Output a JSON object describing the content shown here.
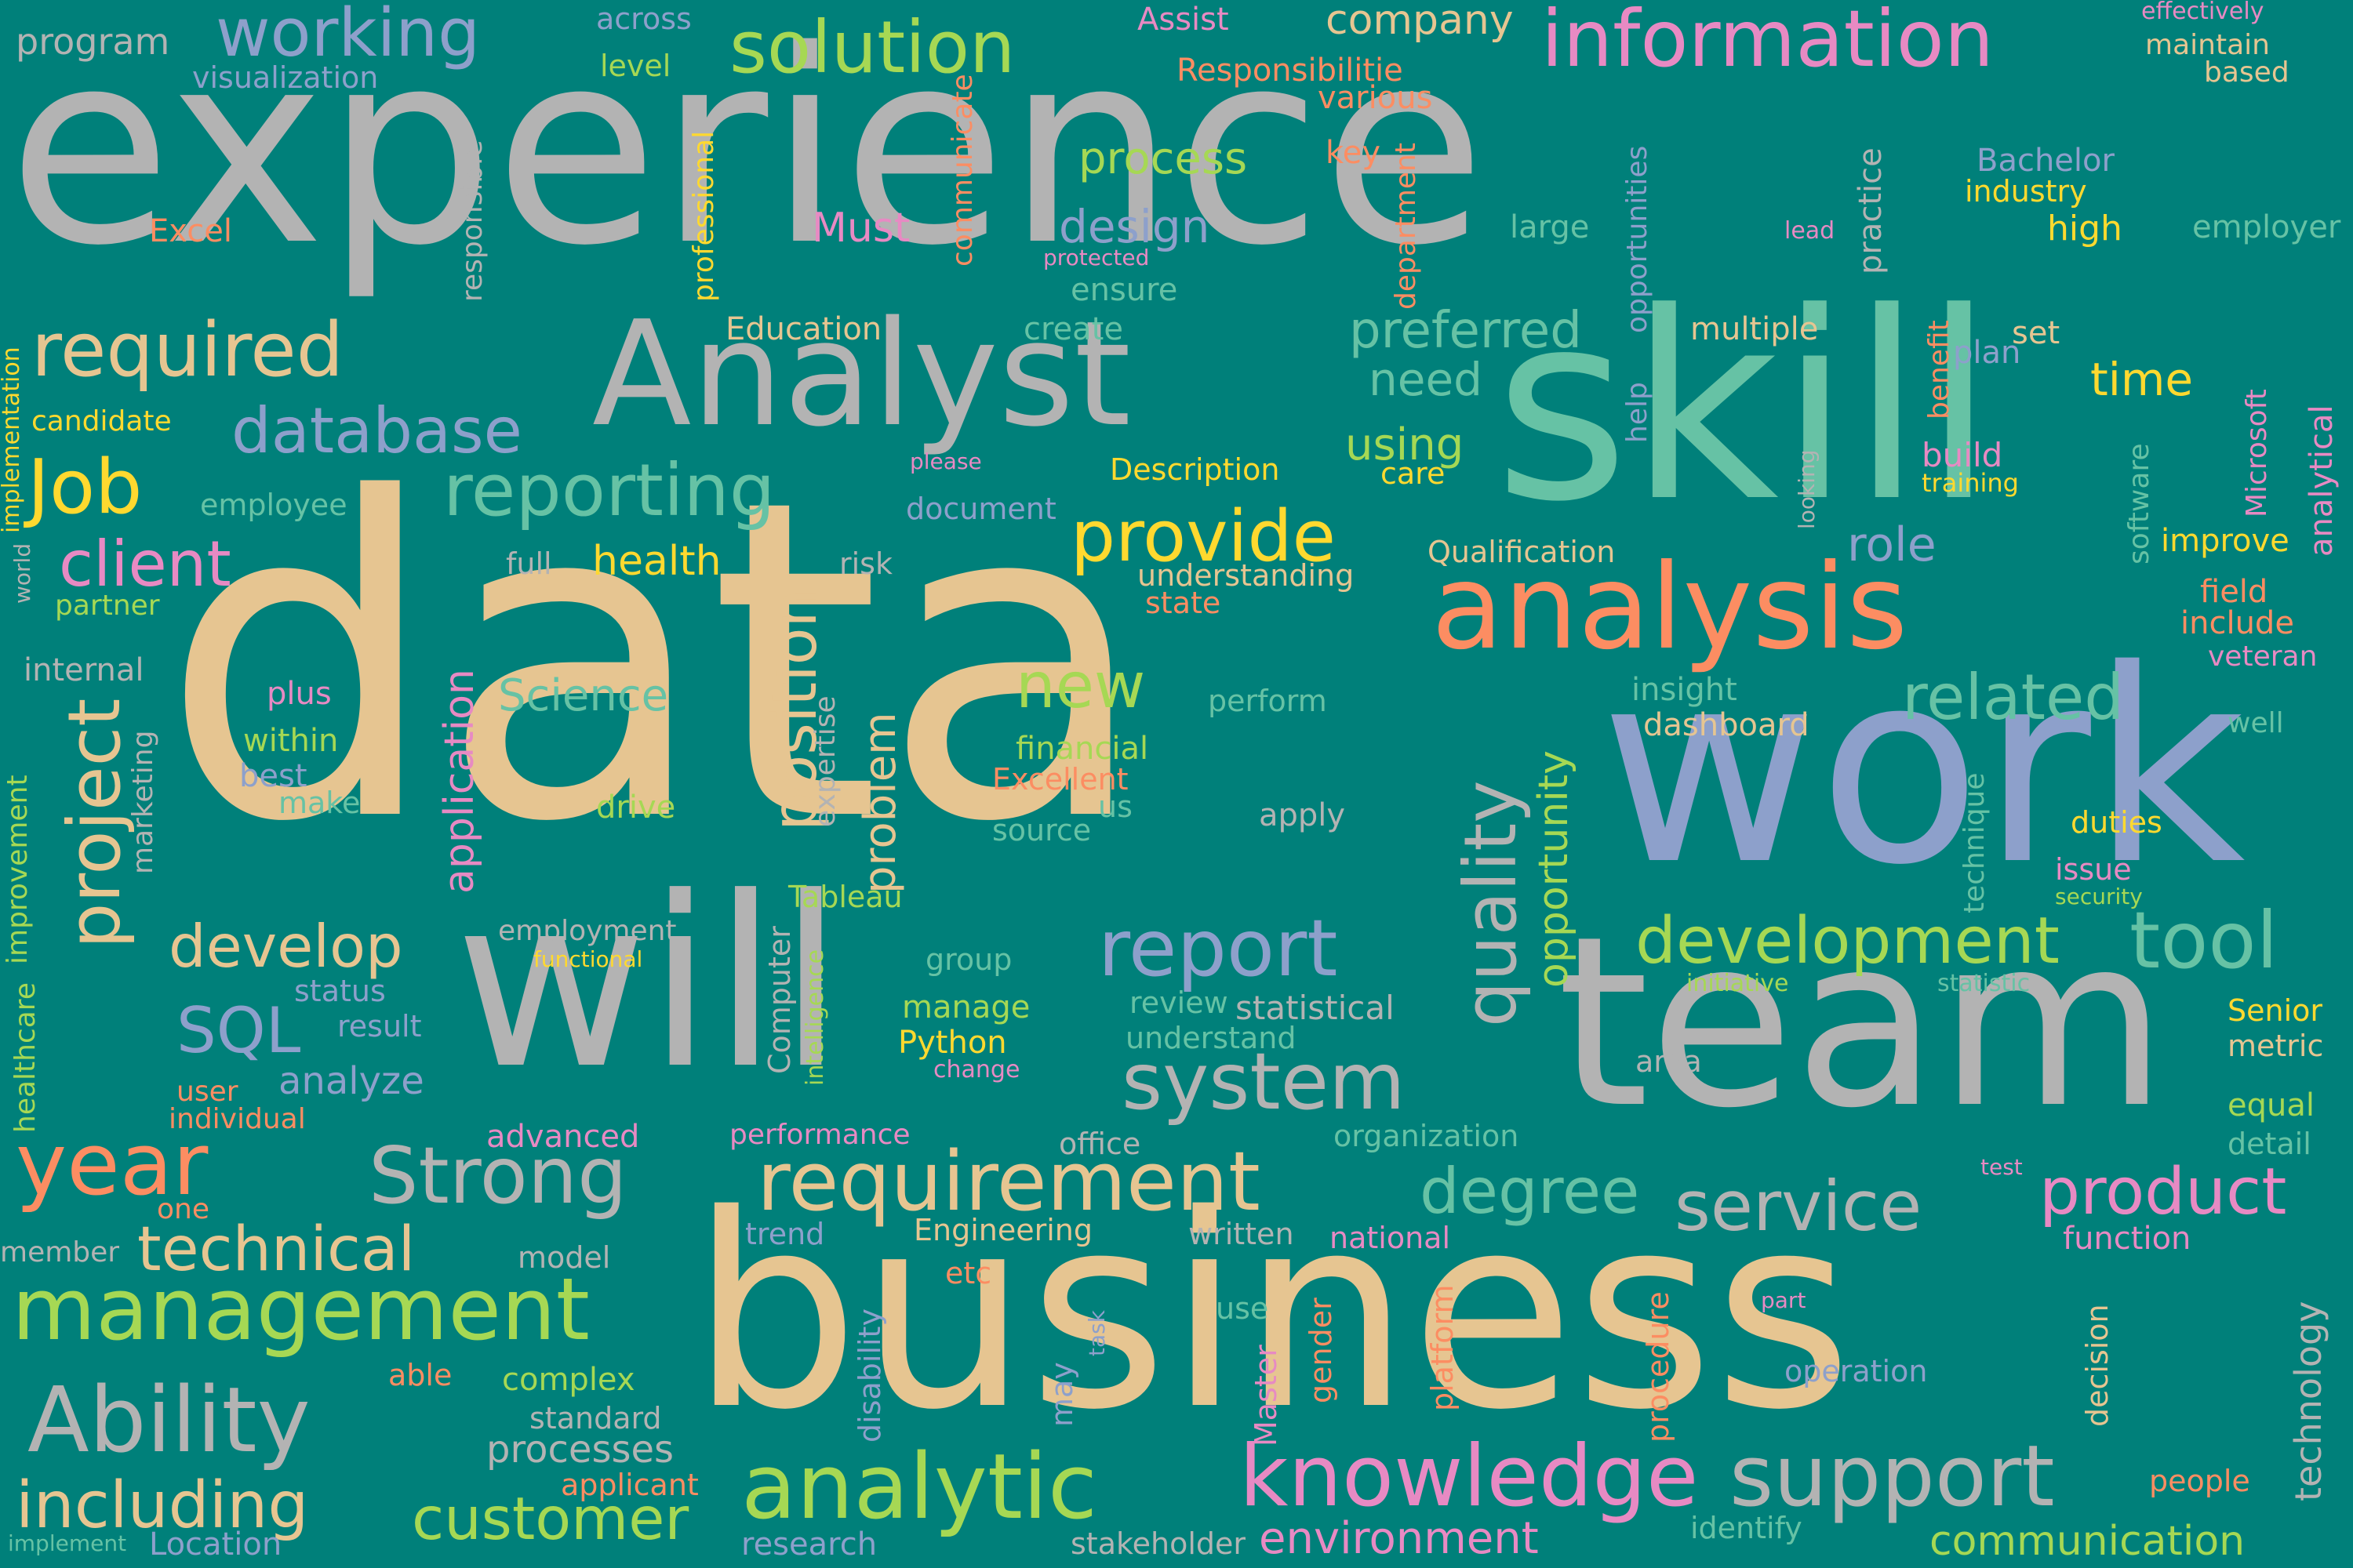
{
  "palette": {
    "background": "#00807a",
    "gray": "#b3b3b3",
    "tan": "#e6c591",
    "teal": "#66c2a5",
    "salmon": "#fc8d62",
    "blue": "#8da0cb",
    "pink": "#e78ac3",
    "lime": "#a6d854",
    "yellow": "#ffd92f"
  },
  "words": [
    {
      "text": "experience",
      "color": "gray"
    },
    {
      "text": "data",
      "color": "tan"
    },
    {
      "text": "skill",
      "color": "teal"
    },
    {
      "text": "work",
      "color": "blue"
    },
    {
      "text": "business",
      "color": "tan"
    },
    {
      "text": "team",
      "color": "gray"
    },
    {
      "text": "will",
      "color": "gray"
    },
    {
      "text": "Analyst",
      "color": "gray"
    },
    {
      "text": "analysis",
      "color": "salmon"
    },
    {
      "text": "information",
      "color": "pink"
    },
    {
      "text": "solution",
      "color": "lime"
    },
    {
      "text": "working",
      "color": "blue"
    },
    {
      "text": "reporting",
      "color": "teal"
    },
    {
      "text": "required",
      "color": "tan"
    },
    {
      "text": "provide",
      "color": "yellow"
    },
    {
      "text": "database",
      "color": "blue"
    },
    {
      "text": "Job",
      "color": "yellow"
    },
    {
      "text": "client",
      "color": "pink"
    },
    {
      "text": "analytic",
      "color": "lime"
    },
    {
      "text": "management",
      "color": "lime"
    },
    {
      "text": "knowledge",
      "color": "pink"
    },
    {
      "text": "support",
      "color": "gray"
    },
    {
      "text": "requirement",
      "color": "tan"
    },
    {
      "text": "system",
      "color": "gray"
    },
    {
      "text": "report",
      "color": "blue"
    },
    {
      "text": "development",
      "color": "lime"
    },
    {
      "text": "tool",
      "color": "teal"
    },
    {
      "text": "Strong",
      "color": "gray"
    },
    {
      "text": "year",
      "color": "salmon"
    },
    {
      "text": "Ability",
      "color": "gray"
    },
    {
      "text": "including",
      "color": "tan"
    },
    {
      "text": "customer",
      "color": "lime"
    },
    {
      "text": "technical",
      "color": "tan"
    },
    {
      "text": "service",
      "color": "gray"
    },
    {
      "text": "product",
      "color": "pink"
    },
    {
      "text": "related",
      "color": "teal"
    },
    {
      "text": "develop",
      "color": "tan"
    },
    {
      "text": "degree",
      "color": "teal"
    },
    {
      "text": "new",
      "color": "lime"
    },
    {
      "text": "SQL",
      "color": "blue"
    },
    {
      "text": "preferred",
      "color": "teal"
    },
    {
      "text": "process",
      "color": "lime"
    },
    {
      "text": "design",
      "color": "blue"
    },
    {
      "text": "need",
      "color": "teal"
    },
    {
      "text": "using",
      "color": "lime"
    },
    {
      "text": "role",
      "color": "blue"
    },
    {
      "text": "company",
      "color": "tan"
    },
    {
      "text": "health",
      "color": "yellow"
    },
    {
      "text": "Science",
      "color": "teal"
    },
    {
      "text": "time",
      "color": "yellow"
    },
    {
      "text": "environment",
      "color": "pink"
    },
    {
      "text": "communication",
      "color": "lime"
    },
    {
      "text": "processes",
      "color": "gray"
    },
    {
      "text": "analyze",
      "color": "blue"
    },
    {
      "text": "Must",
      "color": "pink"
    },
    {
      "text": "Education",
      "color": "tan"
    },
    {
      "text": "program",
      "color": "gray"
    },
    {
      "text": "across",
      "color": "blue"
    },
    {
      "text": "visualization",
      "color": "blue"
    },
    {
      "text": "level",
      "color": "lime"
    },
    {
      "text": "Assist",
      "color": "pink"
    },
    {
      "text": "Responsibilitie",
      "color": "salmon"
    },
    {
      "text": "various",
      "color": "salmon"
    },
    {
      "text": "key",
      "color": "salmon"
    },
    {
      "text": "effectively",
      "color": "pink"
    },
    {
      "text": "maintain",
      "color": "tan"
    },
    {
      "text": "based",
      "color": "tan"
    },
    {
      "text": "Bachelor",
      "color": "blue"
    },
    {
      "text": "industry",
      "color": "yellow"
    },
    {
      "text": "high",
      "color": "yellow"
    },
    {
      "text": "employer",
      "color": "teal"
    },
    {
      "text": "large",
      "color": "teal"
    },
    {
      "text": "lead",
      "color": "pink"
    },
    {
      "text": "Excel",
      "color": "salmon"
    },
    {
      "text": "protected",
      "color": "pink"
    },
    {
      "text": "ensure",
      "color": "teal"
    },
    {
      "text": "create",
      "color": "teal"
    },
    {
      "text": "multiple",
      "color": "tan"
    },
    {
      "text": "set",
      "color": "tan"
    },
    {
      "text": "plan",
      "color": "blue"
    },
    {
      "text": "candidate",
      "color": "yellow"
    },
    {
      "text": "employee",
      "color": "teal"
    },
    {
      "text": "please",
      "color": "pink"
    },
    {
      "text": "Description",
      "color": "yellow"
    },
    {
      "text": "care",
      "color": "yellow"
    },
    {
      "text": "build",
      "color": "pink"
    },
    {
      "text": "training",
      "color": "yellow"
    },
    {
      "text": "document",
      "color": "blue"
    },
    {
      "text": "improve",
      "color": "yellow"
    },
    {
      "text": "full",
      "color": "gray"
    },
    {
      "text": "Qualification",
      "color": "tan"
    },
    {
      "text": "understanding",
      "color": "tan"
    },
    {
      "text": "risk",
      "color": "gray"
    },
    {
      "text": "field",
      "color": "salmon"
    },
    {
      "text": "include",
      "color": "salmon"
    },
    {
      "text": "veteran",
      "color": "pink"
    },
    {
      "text": "partner",
      "color": "lime"
    },
    {
      "text": "state",
      "color": "salmon"
    },
    {
      "text": "internal",
      "color": "gray"
    },
    {
      "text": "insight",
      "color": "teal"
    },
    {
      "text": "dashboard",
      "color": "tan"
    },
    {
      "text": "well",
      "color": "teal"
    },
    {
      "text": "plus",
      "color": "pink"
    },
    {
      "text": "within",
      "color": "lime"
    },
    {
      "text": "best",
      "color": "blue"
    },
    {
      "text": "make",
      "color": "teal"
    },
    {
      "text": "perform",
      "color": "teal"
    },
    {
      "text": "financial",
      "color": "lime"
    },
    {
      "text": "Excellent",
      "color": "salmon"
    },
    {
      "text": "drive",
      "color": "lime"
    },
    {
      "text": "us",
      "color": "teal"
    },
    {
      "text": "apply",
      "color": "gray"
    },
    {
      "text": "source",
      "color": "teal"
    },
    {
      "text": "duties",
      "color": "yellow"
    },
    {
      "text": "issue",
      "color": "pink"
    },
    {
      "text": "security",
      "color": "lime"
    },
    {
      "text": "Tableau",
      "color": "lime"
    },
    {
      "text": "employment",
      "color": "gray"
    },
    {
      "text": "functional",
      "color": "yellow"
    },
    {
      "text": "group",
      "color": "teal"
    },
    {
      "text": "initiative",
      "color": "lime"
    },
    {
      "text": "statistic",
      "color": "teal"
    },
    {
      "text": "status",
      "color": "blue"
    },
    {
      "text": "manage",
      "color": "lime"
    },
    {
      "text": "review",
      "color": "teal"
    },
    {
      "text": "statistical",
      "color": "gray"
    },
    {
      "text": "Senior",
      "color": "yellow"
    },
    {
      "text": "metric",
      "color": "tan"
    },
    {
      "text": "result",
      "color": "blue"
    },
    {
      "text": "Python",
      "color": "yellow"
    },
    {
      "text": "understand",
      "color": "teal"
    },
    {
      "text": "user",
      "color": "salmon"
    },
    {
      "text": "change",
      "color": "pink"
    },
    {
      "text": "area",
      "color": "gray"
    },
    {
      "text": "individual",
      "color": "salmon"
    },
    {
      "text": "equal",
      "color": "lime"
    },
    {
      "text": "advanced",
      "color": "pink"
    },
    {
      "text": "performance",
      "color": "pink"
    },
    {
      "text": "office",
      "color": "gray"
    },
    {
      "text": "organization",
      "color": "teal"
    },
    {
      "text": "detail",
      "color": "teal"
    },
    {
      "text": "one",
      "color": "salmon"
    },
    {
      "text": "test",
      "color": "pink"
    },
    {
      "text": "member",
      "color": "gray"
    },
    {
      "text": "model",
      "color": "gray"
    },
    {
      "text": "trend",
      "color": "blue"
    },
    {
      "text": "Engineering",
      "color": "tan"
    },
    {
      "text": "written",
      "color": "gray"
    },
    {
      "text": "national",
      "color": "pink"
    },
    {
      "text": "function",
      "color": "pink"
    },
    {
      "text": "etc",
      "color": "salmon"
    },
    {
      "text": "part",
      "color": "pink"
    },
    {
      "text": "use",
      "color": "teal"
    },
    {
      "text": "able",
      "color": "salmon"
    },
    {
      "text": "complex",
      "color": "lime"
    },
    {
      "text": "operation",
      "color": "blue"
    },
    {
      "text": "standard",
      "color": "gray"
    },
    {
      "text": "people",
      "color": "salmon"
    },
    {
      "text": "applicant",
      "color": "salmon"
    },
    {
      "text": "implement",
      "color": "teal"
    },
    {
      "text": "Location",
      "color": "blue"
    },
    {
      "text": "research",
      "color": "blue"
    },
    {
      "text": "stakeholder",
      "color": "gray"
    },
    {
      "text": "identify",
      "color": "teal"
    },
    {
      "text": "communicate",
      "color": "salmon"
    },
    {
      "text": "professional",
      "color": "yellow"
    },
    {
      "text": "responsible",
      "color": "gray"
    },
    {
      "text": "department",
      "color": "salmon"
    },
    {
      "text": "opportunities",
      "color": "blue"
    },
    {
      "text": "help",
      "color": "blue"
    },
    {
      "text": "practice",
      "color": "gray"
    },
    {
      "text": "benefit",
      "color": "salmon"
    },
    {
      "text": "looking",
      "color": "gray"
    },
    {
      "text": "software",
      "color": "teal"
    },
    {
      "text": "Microsoft",
      "color": "pink"
    },
    {
      "text": "analytical",
      "color": "pink"
    },
    {
      "text": "implementation",
      "color": "yellow"
    },
    {
      "text": "world",
      "color": "gray"
    },
    {
      "text": "project",
      "color": "tan"
    },
    {
      "text": "position",
      "color": "tan"
    },
    {
      "text": "application",
      "color": "pink"
    },
    {
      "text": "quality",
      "color": "gray"
    },
    {
      "text": "opportunity",
      "color": "lime"
    },
    {
      "text": "problem",
      "color": "tan"
    },
    {
      "text": "expertise",
      "color": "gray"
    },
    {
      "text": "improvement",
      "color": "lime"
    },
    {
      "text": "marketing",
      "color": "gray"
    },
    {
      "text": "healthcare",
      "color": "lime"
    },
    {
      "text": "technique",
      "color": "teal"
    },
    {
      "text": "Computer",
      "color": "gray"
    },
    {
      "text": "intelligence",
      "color": "lime"
    },
    {
      "text": "disability",
      "color": "blue"
    },
    {
      "text": "task",
      "color": "blue"
    },
    {
      "text": "may",
      "color": "blue"
    },
    {
      "text": "Master",
      "color": "pink"
    },
    {
      "text": "gender",
      "color": "salmon"
    },
    {
      "text": "platform",
      "color": "salmon"
    },
    {
      "text": "procedure",
      "color": "salmon"
    },
    {
      "text": "decision",
      "color": "tan"
    },
    {
      "text": "technology",
      "color": "gray"
    }
  ]
}
